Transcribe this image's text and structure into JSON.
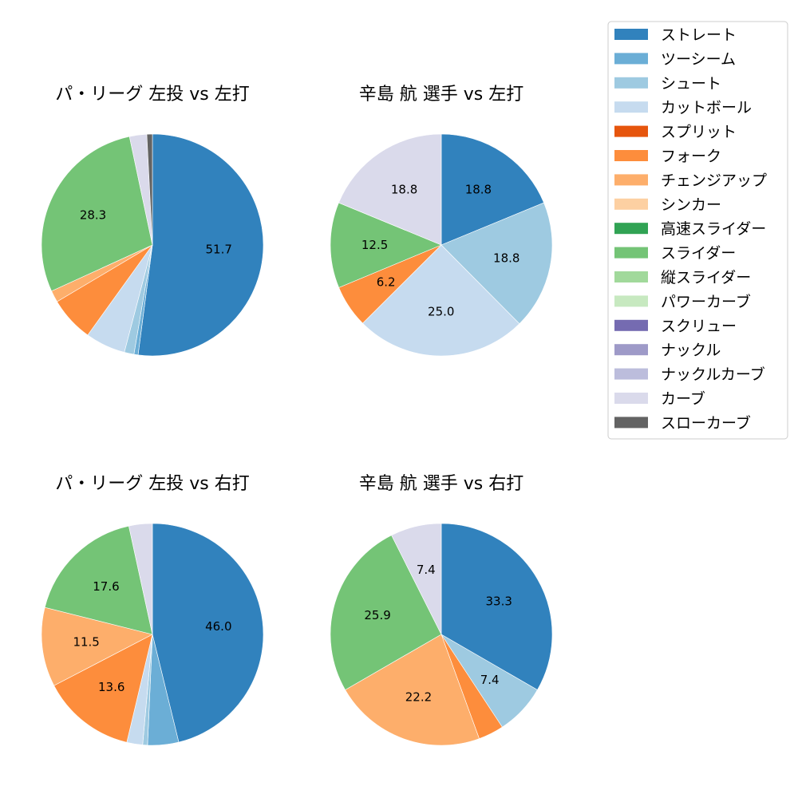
{
  "legend": {
    "entries": [
      {
        "label": "ストレート",
        "color": "#3182bd"
      },
      {
        "label": "ツーシーム",
        "color": "#6baed6"
      },
      {
        "label": "シュート",
        "color": "#9ecae1"
      },
      {
        "label": "カットボール",
        "color": "#c6dbef"
      },
      {
        "label": "スプリット",
        "color": "#e6550d"
      },
      {
        "label": "フォーク",
        "color": "#fd8d3c"
      },
      {
        "label": "チェンジアップ",
        "color": "#fdae6b"
      },
      {
        "label": "シンカー",
        "color": "#fdd0a2"
      },
      {
        "label": "高速スライダー",
        "color": "#31a354"
      },
      {
        "label": "スライダー",
        "color": "#74c476"
      },
      {
        "label": "縦スライダー",
        "color": "#a1d99b"
      },
      {
        "label": "パワーカーブ",
        "color": "#c7e9c0"
      },
      {
        "label": "スクリュー",
        "color": "#756bb1"
      },
      {
        "label": "ナックル",
        "color": "#9e9ac8"
      },
      {
        "label": "ナックルカーブ",
        "color": "#bcbddc"
      },
      {
        "label": "カーブ",
        "color": "#dadaeb"
      },
      {
        "label": "スローカーブ",
        "color": "#636363"
      }
    ]
  },
  "chart_data": [
    {
      "type": "pie",
      "title": "パ・リーグ 左投 vs 左打",
      "slices": [
        {
          "label": "ストレート",
          "value": 51.7,
          "color": "#3182bd",
          "show_label": true
        },
        {
          "label": "ツーシーム",
          "value": 0.6,
          "color": "#6baed6",
          "show_label": false
        },
        {
          "label": "シュート",
          "value": 1.4,
          "color": "#9ecae1",
          "show_label": false
        },
        {
          "label": "カットボール",
          "value": 5.8,
          "color": "#c6dbef",
          "show_label": false
        },
        {
          "label": "フォーク",
          "value": 6.5,
          "color": "#fd8d3c",
          "show_label": false
        },
        {
          "label": "チェンジアップ",
          "value": 1.7,
          "color": "#fdae6b",
          "show_label": false
        },
        {
          "label": "スライダー",
          "value": 28.3,
          "color": "#74c476",
          "show_label": true
        },
        {
          "label": "カーブ",
          "value": 2.5,
          "color": "#dadaeb",
          "show_label": false
        },
        {
          "label": "スローカーブ",
          "value": 0.8,
          "color": "#636363",
          "show_label": false
        }
      ]
    },
    {
      "type": "pie",
      "title": "辛島 航 選手 vs 左打",
      "slices": [
        {
          "label": "ストレート",
          "value": 18.8,
          "color": "#3182bd",
          "show_label": true
        },
        {
          "label": "シュート",
          "value": 18.8,
          "color": "#9ecae1",
          "show_label": true
        },
        {
          "label": "カットボール",
          "value": 25.0,
          "color": "#c6dbef",
          "show_label": true
        },
        {
          "label": "フォーク",
          "value": 6.2,
          "color": "#fd8d3c",
          "show_label": true
        },
        {
          "label": "スライダー",
          "value": 12.5,
          "color": "#74c476",
          "show_label": true
        },
        {
          "label": "カーブ",
          "value": 18.8,
          "color": "#dadaeb",
          "show_label": true
        }
      ]
    },
    {
      "type": "pie",
      "title": "パ・リーグ 左投 vs 右打",
      "slices": [
        {
          "label": "ストレート",
          "value": 46.0,
          "color": "#3182bd",
          "show_label": true
        },
        {
          "label": "ツーシーム",
          "value": 4.5,
          "color": "#6baed6",
          "show_label": false
        },
        {
          "label": "シュート",
          "value": 0.7,
          "color": "#9ecae1",
          "show_label": false
        },
        {
          "label": "カットボール",
          "value": 2.3,
          "color": "#c6dbef",
          "show_label": false
        },
        {
          "label": "フォーク",
          "value": 13.6,
          "color": "#fd8d3c",
          "show_label": true
        },
        {
          "label": "チェンジアップ",
          "value": 11.5,
          "color": "#fdae6b",
          "show_label": true
        },
        {
          "label": "スライダー",
          "value": 17.6,
          "color": "#74c476",
          "show_label": true
        },
        {
          "label": "カーブ",
          "value": 3.4,
          "color": "#dadaeb",
          "show_label": false
        }
      ]
    },
    {
      "type": "pie",
      "title": "辛島 航 選手 vs 右打",
      "slices": [
        {
          "label": "ストレート",
          "value": 33.3,
          "color": "#3182bd",
          "show_label": true
        },
        {
          "label": "シュート",
          "value": 7.4,
          "color": "#9ecae1",
          "show_label": true
        },
        {
          "label": "フォーク",
          "value": 3.7,
          "color": "#fd8d3c",
          "show_label": false
        },
        {
          "label": "チェンジアップ",
          "value": 22.2,
          "color": "#fdae6b",
          "show_label": true
        },
        {
          "label": "スライダー",
          "value": 25.9,
          "color": "#74c476",
          "show_label": true
        },
        {
          "label": "カーブ",
          "value": 7.4,
          "color": "#dadaeb",
          "show_label": true
        }
      ]
    }
  ]
}
